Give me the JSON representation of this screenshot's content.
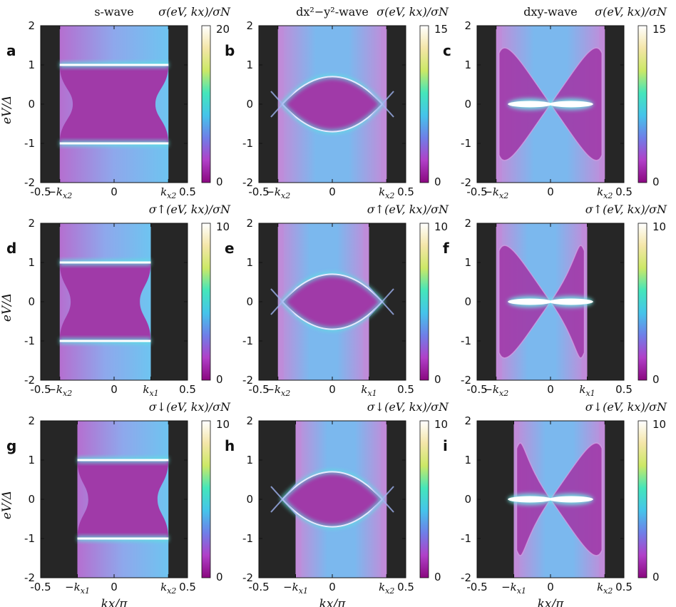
{
  "chart_data": [
    {
      "panel": "a",
      "type": "heatmap",
      "title": "s-wave",
      "title_italic_part": "s",
      "title_rest": "-wave",
      "colorbar_label": "σ(eV, kx)/σN",
      "cb_head": "σ",
      "cb_sub": "",
      "cb_args": "(eV, k",
      "cb_tail": ")/σ",
      "colorbar_range": [
        0,
        20
      ],
      "colorbar_ticks": [
        "20",
        "0"
      ],
      "xlim": [
        -0.5,
        0.5
      ],
      "ylim": [
        -2,
        2
      ],
      "xlabel": "",
      "ylabel": "eV/Δ",
      "x_ticks": [
        "-0.5",
        "−kx2",
        "0",
        "kx2",
        "0.5"
      ],
      "y_ticks": [
        "2",
        "1",
        "0",
        "-1",
        "-2"
      ],
      "gap_kind": "s",
      "band_edges": [
        -0.37,
        0.37
      ],
      "feature_energy": 1.0
    },
    {
      "panel": "b",
      "type": "heatmap",
      "title": "dx²−y²-wave",
      "colorbar_label": "σ(eV, kx)/σN",
      "cb_head": "σ",
      "cb_sub": "",
      "colorbar_range": [
        0,
        15
      ],
      "colorbar_ticks": [
        "15",
        "0"
      ],
      "xlim": [
        -0.5,
        0.5
      ],
      "ylim": [
        -2,
        2
      ],
      "xlabel": "",
      "ylabel": "",
      "x_ticks": [
        "-0.5",
        "−kx2",
        "0",
        "kx2",
        "0.5"
      ],
      "y_ticks": [
        "2",
        "1",
        "0",
        "-1",
        "-2"
      ],
      "gap_kind": "dx2y2",
      "band_edges": [
        -0.37,
        0.37
      ],
      "feature_energy": 0.72
    },
    {
      "panel": "c",
      "type": "heatmap",
      "title": "dxy-wave",
      "colorbar_label": "σ(eV, kx)/σN",
      "cb_head": "σ",
      "cb_sub": "",
      "colorbar_range": [
        0,
        15
      ],
      "colorbar_ticks": [
        "15",
        "0"
      ],
      "xlim": [
        -0.5,
        0.5
      ],
      "ylim": [
        -2,
        2
      ],
      "xlabel": "",
      "ylabel": "",
      "x_ticks": [
        "-0.5",
        "−kx2",
        "0",
        "kx2",
        "0.5"
      ],
      "y_ticks": [
        "2",
        "1",
        "0",
        "-1",
        "-2"
      ],
      "gap_kind": "dxy",
      "band_edges": [
        -0.37,
        0.37
      ],
      "feature_energy": 0.0
    },
    {
      "panel": "d",
      "type": "heatmap",
      "title": "",
      "colorbar_label": "σ↑(eV, kx)/σN",
      "cb_head": "σ",
      "cb_sub": "↑",
      "colorbar_range": [
        0,
        10
      ],
      "colorbar_ticks": [
        "10",
        "0"
      ],
      "xlim": [
        -0.5,
        0.5
      ],
      "ylim": [
        -2,
        2
      ],
      "xlabel": "",
      "ylabel": "eV/Δ",
      "x_ticks": [
        "-0.5",
        "−kx2",
        "0",
        "kx1",
        "0.5"
      ],
      "y_ticks": [
        "2",
        "1",
        "0",
        "-1",
        "-2"
      ],
      "gap_kind": "s",
      "band_edges": [
        -0.37,
        0.25
      ],
      "feature_energy": 1.0
    },
    {
      "panel": "e",
      "type": "heatmap",
      "title": "",
      "colorbar_label": "σ↑(eV, kx)/σN",
      "cb_head": "σ",
      "cb_sub": "↑",
      "colorbar_range": [
        0,
        10
      ],
      "colorbar_ticks": [
        "10",
        "0"
      ],
      "xlim": [
        -0.5,
        0.5
      ],
      "ylim": [
        -2,
        2
      ],
      "xlabel": "",
      "ylabel": "",
      "x_ticks": [
        "-0.5",
        "−kx2",
        "0",
        "kx1",
        "0.5"
      ],
      "y_ticks": [
        "2",
        "1",
        "0",
        "-1",
        "-2"
      ],
      "gap_kind": "dx2y2",
      "band_edges": [
        -0.37,
        0.25
      ],
      "feature_energy": 0.72
    },
    {
      "panel": "f",
      "type": "heatmap",
      "title": "",
      "colorbar_label": "σ↑(eV, kx)/σN",
      "cb_head": "σ",
      "cb_sub": "↑",
      "colorbar_range": [
        0,
        10
      ],
      "colorbar_ticks": [
        "10",
        "0"
      ],
      "xlim": [
        -0.5,
        0.5
      ],
      "ylim": [
        -2,
        2
      ],
      "xlabel": "",
      "ylabel": "",
      "x_ticks": [
        "-0.5",
        "−kx2",
        "0",
        "kx1",
        "0.5"
      ],
      "y_ticks": [
        "2",
        "1",
        "0",
        "-1",
        "-2"
      ],
      "gap_kind": "dxy",
      "band_edges": [
        -0.37,
        0.25
      ],
      "feature_energy": 0.0
    },
    {
      "panel": "g",
      "type": "heatmap",
      "title": "",
      "colorbar_label": "σ↓(eV, kx)/σN",
      "cb_head": "σ",
      "cb_sub": "↓",
      "colorbar_range": [
        0,
        10
      ],
      "colorbar_ticks": [
        "10",
        "0"
      ],
      "xlim": [
        -0.5,
        0.5
      ],
      "ylim": [
        -2,
        2
      ],
      "xlabel": "kx/π",
      "ylabel": "eV/Δ",
      "x_ticks": [
        "-0.5",
        "−kx1",
        "0",
        "kx2",
        "0.5"
      ],
      "y_ticks": [
        "2",
        "1",
        "0",
        "-1",
        "-2"
      ],
      "gap_kind": "s",
      "band_edges": [
        -0.25,
        0.37
      ],
      "feature_energy": 1.0
    },
    {
      "panel": "h",
      "type": "heatmap",
      "title": "",
      "colorbar_label": "σ↓(eV, kx)/σN",
      "cb_head": "σ",
      "cb_sub": "↓",
      "colorbar_range": [
        0,
        10
      ],
      "colorbar_ticks": [
        "10",
        "0"
      ],
      "xlim": [
        -0.5,
        0.5
      ],
      "ylim": [
        -2,
        2
      ],
      "xlabel": "kx/π",
      "ylabel": "",
      "x_ticks": [
        "-0.5",
        "−kx1",
        "0",
        "kx2",
        "0.5"
      ],
      "y_ticks": [
        "2",
        "1",
        "0",
        "-1",
        "-2"
      ],
      "gap_kind": "dx2y2",
      "band_edges": [
        -0.25,
        0.37
      ],
      "feature_energy": 0.72
    },
    {
      "panel": "i",
      "type": "heatmap",
      "title": "",
      "colorbar_label": "σ↓(eV, kx)/σN",
      "cb_head": "σ",
      "cb_sub": "↓",
      "colorbar_range": [
        0,
        10
      ],
      "colorbar_ticks": [
        "10",
        "0"
      ],
      "xlim": [
        -0.5,
        0.5
      ],
      "ylim": [
        -2,
        2
      ],
      "xlabel": "kx/π",
      "ylabel": "",
      "x_ticks": [
        "-0.5",
        "−kx1",
        "0",
        "kx2",
        "0.5"
      ],
      "y_ticks": [
        "2",
        "1",
        "0",
        "-1",
        "-2"
      ],
      "gap_kind": "dxy",
      "band_edges": [
        -0.25,
        0.37
      ],
      "feature_energy": 0.0
    }
  ],
  "colors": {
    "background_dark": "#262626",
    "bulk": "#a03aa8",
    "band": "#78b8ee",
    "edge": "#e9e9ff",
    "bright": "#ffffff",
    "colormap": [
      "#8a0880",
      "#b040c8",
      "#6f7fe8",
      "#45c4ea",
      "#44e6bb",
      "#cce866",
      "#f4e6a8",
      "#ffffff"
    ]
  }
}
